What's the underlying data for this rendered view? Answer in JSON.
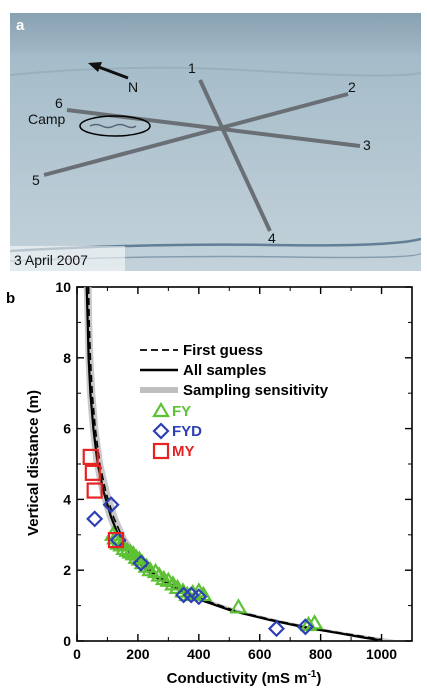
{
  "panel_a": {
    "panel_label": "a",
    "north_label": "N",
    "camp_label": "Camp",
    "date_label": "3 April 2007",
    "transect_labels": [
      "1",
      "2",
      "3",
      "4",
      "5",
      "6"
    ]
  },
  "chart_data": {
    "type": "scatter",
    "panel_label": "b",
    "xlabel": "Conductivity (mS m",
    "xlabel_superscript": "-1",
    "xlabel_close": ")",
    "ylabel": "Vertical distance (m)",
    "xlim": [
      0,
      1100
    ],
    "ylim": [
      0,
      10
    ],
    "xticks": [
      0,
      200,
      400,
      600,
      800,
      1000
    ],
    "yticks": [
      0,
      2,
      4,
      6,
      8,
      10
    ],
    "grid": false,
    "legend_placement": "top-right",
    "colors": {
      "FY": "#5cc234",
      "FYD": "#2d3fb4",
      "MY": "#e52422",
      "sensitivity": "#bfbfbf",
      "curve": "#000000"
    },
    "lines": [
      {
        "name": "First guess",
        "style": "dashed",
        "x": [
          38,
          40,
          44,
          50,
          60,
          75,
          95,
          120,
          150,
          200,
          260,
          330,
          420,
          520,
          640,
          760,
          870,
          960,
          1000
        ],
        "y": [
          10,
          9.0,
          8.0,
          7.0,
          6.0,
          5.0,
          4.2,
          3.5,
          2.9,
          2.3,
          1.85,
          1.5,
          1.15,
          0.85,
          0.6,
          0.38,
          0.22,
          0.1,
          0.04
        ]
      },
      {
        "name": "All samples",
        "style": "solid",
        "x": [
          32,
          35,
          38,
          44,
          54,
          68,
          88,
          112,
          140,
          190,
          250,
          320,
          410,
          510,
          630,
          750,
          860,
          940,
          990
        ],
        "y": [
          10,
          9.0,
          8.0,
          7.0,
          6.0,
          5.0,
          4.2,
          3.5,
          2.9,
          2.3,
          1.85,
          1.5,
          1.15,
          0.85,
          0.6,
          0.38,
          0.22,
          0.1,
          0.03
        ]
      },
      {
        "name": "Sampling sensitivity",
        "style": "band",
        "x_low": [
          22,
          25,
          28,
          33,
          42,
          55,
          74,
          98,
          126,
          175,
          235,
          305,
          395,
          495,
          615,
          735,
          840,
          920,
          970
        ],
        "x_high": [
          48,
          50,
          54,
          60,
          70,
          86,
          108,
          134,
          164,
          215,
          275,
          345,
          435,
          540,
          660,
          785,
          900,
          990,
          1045
        ],
        "y": [
          10,
          9.0,
          8.0,
          7.0,
          6.0,
          5.0,
          4.2,
          3.5,
          2.9,
          2.3,
          1.85,
          1.5,
          1.15,
          0.85,
          0.6,
          0.38,
          0.22,
          0.1,
          0.03
        ]
      }
    ],
    "series": [
      {
        "name": "FY",
        "marker": "triangle",
        "points": [
          [
            118,
            3.0
          ],
          [
            125,
            2.9
          ],
          [
            135,
            2.75
          ],
          [
            145,
            2.7
          ],
          [
            155,
            2.6
          ],
          [
            165,
            2.55
          ],
          [
            175,
            2.5
          ],
          [
            185,
            2.45
          ],
          [
            195,
            2.35
          ],
          [
            205,
            2.3
          ],
          [
            215,
            2.2
          ],
          [
            228,
            2.1
          ],
          [
            240,
            2.0
          ],
          [
            258,
            1.95
          ],
          [
            270,
            1.85
          ],
          [
            285,
            1.75
          ],
          [
            300,
            1.7
          ],
          [
            315,
            1.6
          ],
          [
            330,
            1.5
          ],
          [
            348,
            1.4
          ],
          [
            362,
            1.3
          ],
          [
            380,
            1.35
          ],
          [
            400,
            1.4
          ],
          [
            415,
            1.3
          ],
          [
            530,
            0.95
          ],
          [
            760,
            0.45
          ],
          [
            780,
            0.5
          ]
        ]
      },
      {
        "name": "FYD",
        "marker": "diamond",
        "points": [
          [
            58,
            3.45
          ],
          [
            112,
            3.85
          ],
          [
            135,
            2.85
          ],
          [
            210,
            2.2
          ],
          [
            350,
            1.3
          ],
          [
            375,
            1.3
          ],
          [
            400,
            1.25
          ],
          [
            655,
            0.35
          ],
          [
            750,
            0.4
          ]
        ]
      },
      {
        "name": "MY",
        "marker": "square",
        "points": [
          [
            45,
            5.2
          ],
          [
            52,
            4.75
          ],
          [
            58,
            4.25
          ],
          [
            128,
            2.85
          ]
        ]
      }
    ]
  }
}
